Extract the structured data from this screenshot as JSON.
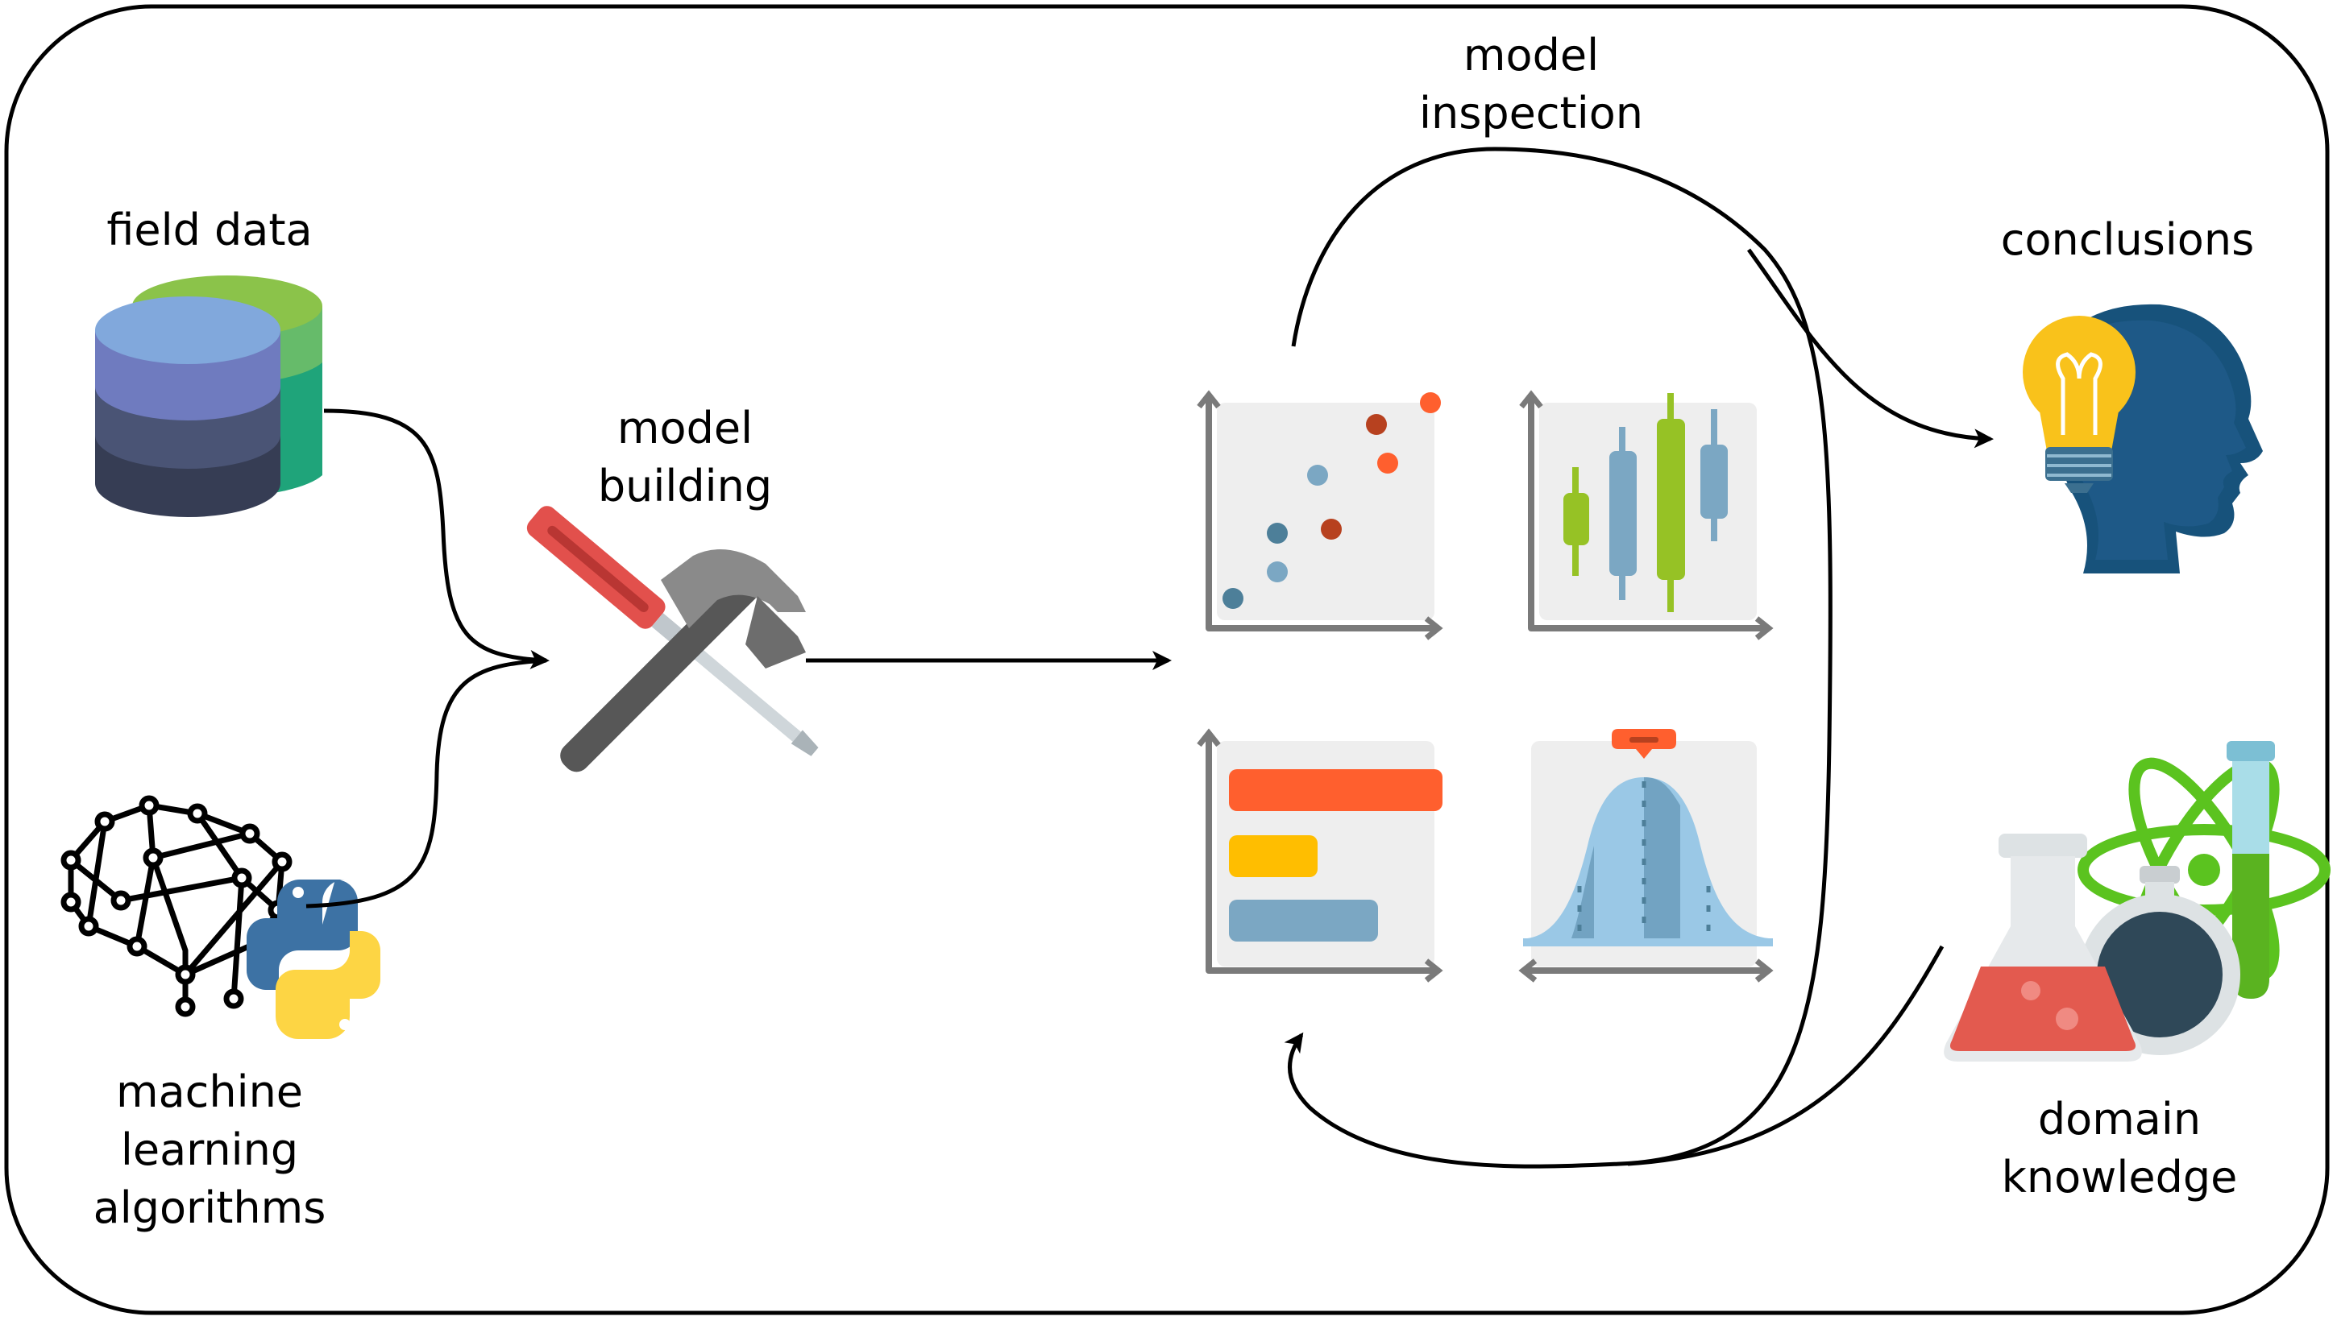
{
  "labels": {
    "field_data": "field data",
    "ml_algorithms": [
      "machine",
      "learning",
      "algorithms"
    ],
    "model_building": [
      "model",
      "building"
    ],
    "model_inspection": [
      "model",
      "inspection"
    ],
    "conclusions": "conclusions",
    "domain_knowledge": [
      "domain",
      "knowledge"
    ]
  },
  "colors": {
    "arrow": "#000000",
    "axis": "#7a7a7a",
    "panel": "#eeeeee",
    "orange": "#ff5f2e",
    "dark_red": "#b7411f",
    "steel_blue": "#4d7f99",
    "light_blue": "#7ba7c3",
    "green": "#96c225",
    "yellow": "#ffbe00",
    "head_blue": "#17527b",
    "bulb_yellow": "#f9c21b"
  }
}
